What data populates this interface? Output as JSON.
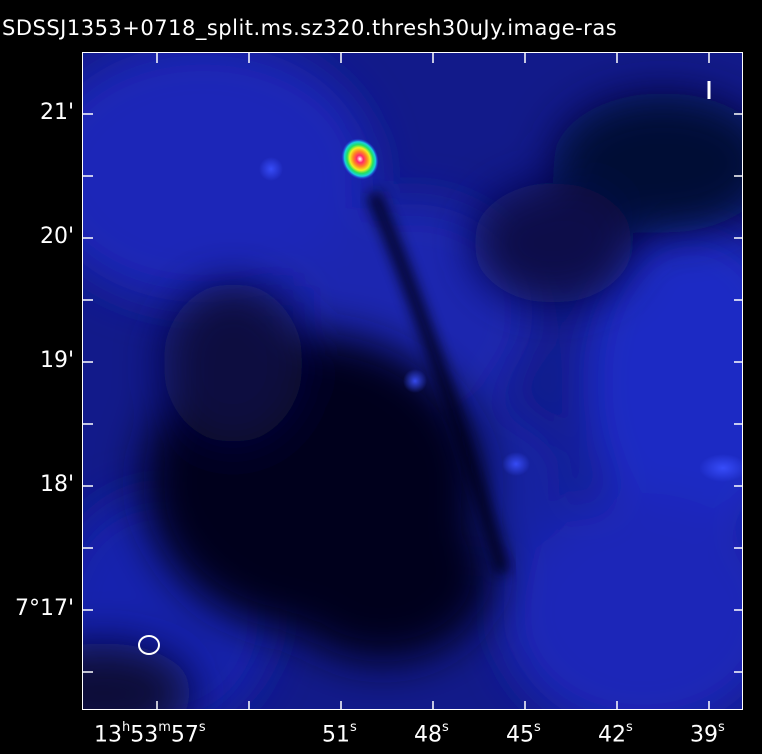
{
  "image": {
    "title": "SDSSJ1353+0718_split.ms.sz320.thresh30uJy.image-ras",
    "dec_labels": [
      "21'",
      "20'",
      "19'",
      "18'",
      "7°17'"
    ],
    "ra_labels": [
      {
        "h": "13",
        "hu": "h",
        "m": "53",
        "mu": "m",
        "s": "57",
        "su": "s"
      },
      {
        "s": "51",
        "su": "s"
      },
      {
        "s": "48",
        "su": "s"
      },
      {
        "s": "45",
        "su": "s"
      },
      {
        "s": "42",
        "su": "s"
      },
      {
        "s": "39",
        "su": "s"
      }
    ],
    "colors": {
      "background": "#000000",
      "map_low": "#0a0a3a",
      "map_mid": "#1a24b8",
      "source_peak": "#ff2a6a",
      "source_ring_green": "#22e060",
      "source_ring_cyan": "#18d0e0"
    }
  }
}
